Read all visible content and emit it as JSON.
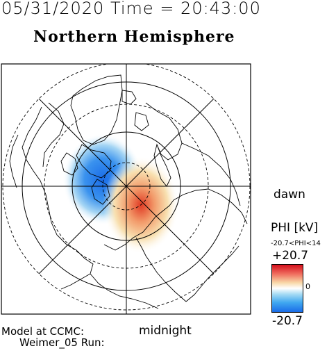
{
  "header": {
    "datetime": "05/31/2020 Time = 20:43:00",
    "hemisphere": "Northern Hemisphere"
  },
  "map": {
    "direction_right": "dawn",
    "direction_bottom": "midnight"
  },
  "colorbar": {
    "quantity": "PHI [kV]",
    "range_text": "-20.7<PHI<14",
    "max_label": "+20.7",
    "mid_label": "0",
    "min_label": "-20.7",
    "max_color": "#d4101c",
    "min_color": "#1a6ce8"
  },
  "footer": {
    "model_label": "Model at CCMC:",
    "run_label": "Weimer_05 Run:"
  }
}
